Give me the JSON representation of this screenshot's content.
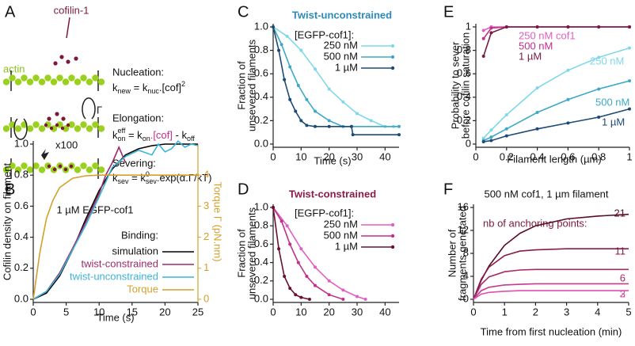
{
  "panel_labels": [
    "A",
    "B",
    "C",
    "D",
    "E",
    "F"
  ],
  "panel_a": {
    "cofilin_label": "cofilin-1",
    "actin_label": "actin",
    "nucleation": {
      "title": "Nucleation:",
      "formula": [
        "k",
        "new",
        " = k",
        "nuc",
        ".[cof]",
        "2"
      ]
    },
    "elongation": {
      "title": "Elongation:",
      "formula": [
        "k",
        "on",
        "eff",
        " = k",
        "on",
        ".[cof]",
        " - k",
        "off"
      ],
      "torque_symbol": "Γ"
    },
    "severing": {
      "title": "Severing:",
      "formula": [
        "k",
        "sev",
        " = k",
        "0",
        "sev",
        ".exp(α.Γ/kT)"
      ],
      "multiplier": "x100"
    }
  },
  "chart_data": [
    {
      "type": "line",
      "title": "1 µM EGFP-cof1",
      "xlabel": "Time (s)",
      "ylabel": [
        "Cofilin density on filament"
      ],
      "y2label": "Torque Γ (pN.nm)",
      "legend_title": "Binding:",
      "xlim": [
        0,
        25
      ],
      "xticks": [
        0,
        5,
        10,
        15,
        20,
        25
      ],
      "ylim": [
        0,
        1
      ],
      "yticks": [
        {
          "value": 0,
          "label": "0.0"
        },
        {
          "value": 0.2,
          "label": "0.2"
        },
        {
          "value": 0.4,
          "label": "0.4"
        },
        {
          "value": 0.6,
          "label": "0.6"
        },
        {
          "value": 0.8,
          "label": "0.8"
        },
        {
          "value": 1,
          "label": "1.0"
        }
      ],
      "y2lim": [
        0,
        5
      ],
      "y2ticks": [
        0,
        1,
        2,
        3,
        4
      ],
      "series": [
        {
          "name": "simulation",
          "color": "#000000",
          "x": [
            0,
            2,
            4,
            6,
            8,
            10,
            12,
            14,
            16,
            18,
            20,
            22,
            24,
            25
          ],
          "values": [
            0,
            0.04,
            0.15,
            0.32,
            0.52,
            0.7,
            0.84,
            0.93,
            0.97,
            0.99,
            1.0,
            1.0,
            1.0,
            1.0
          ]
        },
        {
          "name": "twist-constrained",
          "color": "#9b2a66",
          "x": [
            0,
            2,
            4,
            6,
            8,
            10,
            11,
            12,
            13,
            14
          ],
          "values": [
            0,
            0.05,
            0.17,
            0.33,
            0.5,
            0.68,
            0.8,
            0.88,
            0.98,
            0.88
          ]
        },
        {
          "name": "twist-unconstrained",
          "color": "#3ab4d8",
          "x": [
            0,
            2,
            4,
            6,
            8,
            10,
            12,
            14,
            16,
            18,
            19,
            20,
            21,
            22,
            23,
            24,
            25
          ],
          "values": [
            0,
            0.05,
            0.16,
            0.32,
            0.48,
            0.66,
            0.85,
            0.92,
            0.96,
            0.93,
            1.0,
            0.95,
            0.97,
            1.02,
            0.98,
            1.0,
            0.99
          ]
        },
        {
          "name": "Torque",
          "color": "#d4a02a",
          "axis": "y2",
          "x": [
            0,
            1,
            2,
            3,
            4,
            6,
            8,
            10,
            15,
            20,
            25
          ],
          "values": [
            0,
            1.5,
            2.6,
            3.2,
            3.6,
            3.9,
            3.98,
            4,
            4,
            4,
            4
          ]
        }
      ]
    },
    {
      "type": "line",
      "title": "Twist-unconstrained",
      "xlabel": "Time (s)",
      "ylabel": [
        "Fraction of",
        "unsevered filaments"
      ],
      "legend_title": "[EGFP-cof1]:",
      "xlim": [
        0,
        45
      ],
      "xticks": [
        0,
        10,
        20,
        30,
        40
      ],
      "ylim": [
        0,
        1
      ],
      "yticks": [
        {
          "value": 0,
          "label": "0.0"
        },
        {
          "value": 0.2,
          "label": "0.2"
        },
        {
          "value": 0.4,
          "label": "0.4"
        },
        {
          "value": 0.6,
          "label": "0.6"
        },
        {
          "value": 0.8,
          "label": "0.8"
        },
        {
          "value": 1,
          "label": "1.0"
        }
      ],
      "series": [
        {
          "name": "250 nM",
          "color": "#7ed8ea",
          "x": [
            0,
            5,
            10,
            15,
            20,
            25,
            30,
            35,
            40,
            43
          ],
          "values": [
            1,
            0.92,
            0.8,
            0.64,
            0.47,
            0.36,
            0.26,
            0.2,
            0.15,
            0.15
          ]
        },
        {
          "name": "500 nM",
          "color": "#3fa8c8",
          "x": [
            0,
            3,
            6,
            9,
            12,
            15,
            20,
            25,
            28,
            45
          ],
          "values": [
            1,
            0.85,
            0.66,
            0.5,
            0.38,
            0.28,
            0.2,
            0.15,
            0.15,
            0.15
          ]
        },
        {
          "name": "1 µM",
          "color": "#1b4a78",
          "x": [
            0,
            2,
            4,
            6,
            8,
            10,
            12,
            15,
            20,
            28,
            28.5,
            45
          ],
          "values": [
            1,
            0.8,
            0.55,
            0.38,
            0.28,
            0.2,
            0.16,
            0.15,
            0.15,
            0.15,
            0.08,
            0.08
          ]
        }
      ]
    },
    {
      "type": "line",
      "title": "Twist-constrained",
      "ylabel": [
        "Fraction of",
        "unsevered filaments"
      ],
      "legend_title": "[EGFP-cof1]:",
      "xlim": [
        0,
        45
      ],
      "xticks": [
        0,
        10,
        20,
        30,
        40
      ],
      "ylim": [
        0,
        1
      ],
      "yticks": [
        {
          "value": 0,
          "label": "0.0"
        },
        {
          "value": 0.2,
          "label": "0.2"
        },
        {
          "value": 0.4,
          "label": "0.4"
        },
        {
          "value": 0.6,
          "label": "0.6"
        },
        {
          "value": 0.8,
          "label": "0.8"
        },
        {
          "value": 1,
          "label": "1.0"
        }
      ],
      "series": [
        {
          "name": "250 nM",
          "color": "#e060c0",
          "x": [
            0,
            5,
            10,
            15,
            20,
            25,
            30,
            33
          ],
          "values": [
            1,
            0.8,
            0.55,
            0.35,
            0.2,
            0.1,
            0.03,
            0
          ]
        },
        {
          "name": "500 nM",
          "color": "#c0308a",
          "x": [
            0,
            3,
            6,
            9,
            12,
            15,
            20,
            25
          ],
          "values": [
            1,
            0.85,
            0.6,
            0.4,
            0.25,
            0.15,
            0.05,
            0
          ]
        },
        {
          "name": "1 µM",
          "color": "#6a1030",
          "x": [
            0,
            2,
            4,
            6,
            8,
            10,
            13
          ],
          "values": [
            1,
            0.55,
            0.25,
            0.12,
            0.05,
            0.02,
            0
          ]
        }
      ]
    },
    {
      "type": "line",
      "xlabel": "Filament length (µm)",
      "ylabel": [
        "Probability to sever",
        "before cofilin saturation"
      ],
      "xlim": [
        0,
        1
      ],
      "xticks": [
        0,
        0.2,
        0.4,
        0.6,
        0.8,
        1
      ],
      "ylim": [
        0,
        1
      ],
      "yticks": [
        0,
        0.2,
        0.4,
        0.6,
        0.8,
        1
      ],
      "series": [
        {
          "name": "250 nM cof1",
          "color": "#e060c0",
          "x": [
            0.05,
            0.1,
            0.2,
            0.4,
            0.6,
            0.8,
            1
          ],
          "values": [
            0.97,
            1,
            1,
            1,
            1,
            1,
            1
          ]
        },
        {
          "name": "500 nM",
          "color": "#c0308a",
          "x": [
            0.05,
            0.1,
            0.2,
            0.4,
            0.6,
            0.8,
            1
          ],
          "values": [
            0.9,
            0.99,
            1,
            1,
            1,
            1,
            1
          ]
        },
        {
          "name": "1 µM",
          "color": "#7a1a40",
          "x": [
            0.05,
            0.1,
            0.2,
            0.4,
            0.6,
            0.8,
            1
          ],
          "values": [
            0.75,
            0.95,
            1,
            1,
            1,
            1,
            1
          ]
        },
        {
          "name": "250 nM",
          "color": "#7ed8ea",
          "x": [
            0.05,
            0.1,
            0.2,
            0.4,
            0.6,
            0.8,
            1
          ],
          "values": [
            0.05,
            0.12,
            0.25,
            0.48,
            0.63,
            0.74,
            0.82
          ]
        },
        {
          "name": "500 nM",
          "color": "#3fa8c8",
          "x": [
            0.05,
            0.1,
            0.2,
            0.4,
            0.6,
            0.8,
            1
          ],
          "values": [
            0.03,
            0.06,
            0.13,
            0.27,
            0.38,
            0.47,
            0.54
          ]
        },
        {
          "name": "1 µM",
          "color": "#1b4a78",
          "x": [
            0.05,
            0.1,
            0.2,
            0.4,
            0.6,
            0.8,
            1
          ],
          "values": [
            0.02,
            0.03,
            0.07,
            0.13,
            0.18,
            0.23,
            0.3
          ]
        }
      ]
    },
    {
      "type": "line",
      "title": "500 nM cof1, 1 µm filament",
      "annotation": "nb of anchoring points:",
      "xlabel": "Time from first nucleation (min)",
      "ylabel": [
        "Number of",
        "fragments generated"
      ],
      "xlim": [
        0,
        5
      ],
      "xticks": [
        0,
        1,
        2,
        3,
        4,
        5
      ],
      "ylim": [
        0,
        16
      ],
      "yticks": [
        0,
        4,
        8,
        12,
        16
      ],
      "series": [
        {
          "name": "21",
          "color": "#5a0a2a",
          "x": [
            0,
            0.25,
            0.5,
            1,
            1.5,
            2,
            3,
            4,
            5
          ],
          "values": [
            0,
            3.3,
            5.8,
            9.4,
            11.5,
            12.8,
            14.0,
            14.5,
            14.8
          ]
        },
        {
          "name": "11",
          "color": "#8a1a4a",
          "x": [
            0,
            0.25,
            0.5,
            1,
            1.5,
            2,
            3,
            4,
            5
          ],
          "values": [
            0,
            3.5,
            5.6,
            7.6,
            8.4,
            8.6,
            8.8,
            8.8,
            8.8
          ]
        },
        {
          "name": "6",
          "color": "#a8286a",
          "x": [
            0,
            0.25,
            0.5,
            1,
            1.5,
            2,
            3,
            4,
            5
          ],
          "values": [
            0,
            2.6,
            3.9,
            4.8,
            5.1,
            5.2,
            5.2,
            5.2,
            5.2
          ]
        },
        {
          "name": "3",
          "color": "#c83a8a",
          "x": [
            0,
            0.25,
            0.5,
            1,
            1.5,
            2,
            3,
            4,
            5
          ],
          "values": [
            0,
            1.5,
            2.1,
            2.5,
            2.6,
            2.7,
            2.7,
            2.7,
            2.7
          ]
        },
        {
          "name": "2",
          "color": "#e050b0",
          "x": [
            0,
            0.25,
            0.5,
            1,
            1.5,
            2,
            3,
            4,
            5
          ],
          "values": [
            0,
            0.9,
            1.2,
            1.4,
            1.5,
            1.5,
            1.5,
            1.5,
            1.5
          ]
        }
      ]
    }
  ]
}
